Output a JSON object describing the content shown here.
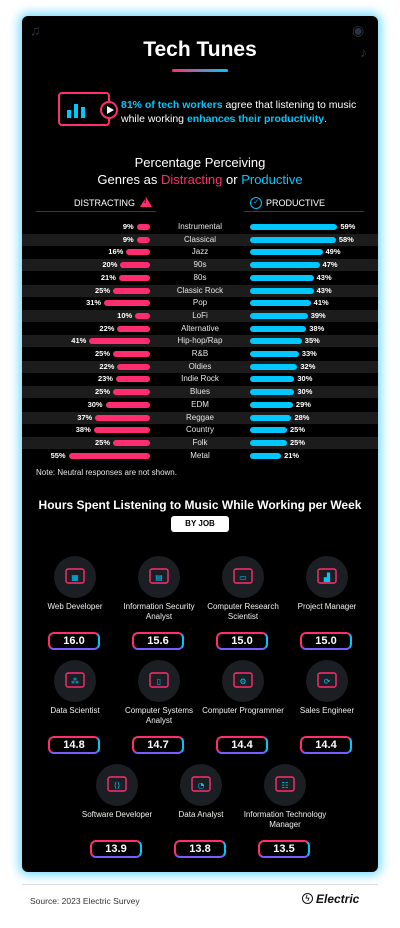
{
  "header": {
    "title": "Tech Tunes"
  },
  "stat": {
    "lead": "81% of tech workers",
    "middle": " agree that listening to music while working ",
    "highlight": "enhances their productivity",
    "end": "."
  },
  "genre_chart_title": {
    "line1": "Percentage Perceiving",
    "prefix": "Genres as ",
    "distracting": "Distracting",
    "or": " or ",
    "productive": "Productive"
  },
  "legend": {
    "distracting": "DISTRACTING",
    "productive": "PRODUCTIVE"
  },
  "note": "Note: Neutral responses are not shown.",
  "hours_section": {
    "title": "Hours Spent Listening to Music While Working per Week",
    "badge": "BY JOB"
  },
  "footer": {
    "source": "Source: 2023 Electric Survey",
    "brand": "Electric"
  },
  "colors": {
    "distracting": "#ff2d6f",
    "productive": "#00c8ff",
    "background": "#000000"
  },
  "chart_data": [
    {
      "type": "bar",
      "orientation": "horizontal-diverging",
      "title": "Percentage Perceiving Genres as Distracting or Productive",
      "categories": [
        "Instrumental",
        "Classical",
        "Jazz",
        "90s",
        "80s",
        "Classic Rock",
        "Pop",
        "LoFi",
        "Alternative",
        "Hip-hop/Rap",
        "R&B",
        "Oldies",
        "Indie Rock",
        "Blues",
        "EDM",
        "Reggae",
        "Country",
        "Folk",
        "Metal"
      ],
      "series": [
        {
          "name": "DISTRACTING",
          "values": [
            9,
            9,
            16,
            20,
            21,
            25,
            31,
            10,
            22,
            41,
            25,
            22,
            23,
            25,
            30,
            37,
            38,
            25,
            55
          ]
        },
        {
          "name": "PRODUCTIVE",
          "values": [
            59,
            58,
            49,
            47,
            43,
            43,
            41,
            39,
            38,
            35,
            33,
            32,
            30,
            30,
            29,
            28,
            25,
            25,
            21
          ]
        }
      ],
      "unit": "%",
      "legend": "top"
    },
    {
      "type": "table",
      "title": "Hours Spent Listening to Music While Working per Week",
      "subtitle": "BY JOB",
      "rows": [
        {
          "job": "Web Developer",
          "hours": "16.0",
          "icon": "web-layout-icon"
        },
        {
          "job": "Information Security Analyst",
          "hours": "15.6",
          "icon": "binary-lock-icon"
        },
        {
          "job": "Computer Research Scientist",
          "hours": "15.0",
          "icon": "monitor-search-icon"
        },
        {
          "job": "Project Manager",
          "hours": "15.0",
          "icon": "hand-chart-icon"
        },
        {
          "job": "Data Scientist",
          "hours": "14.8",
          "icon": "network-nodes-icon"
        },
        {
          "job": "Computer Systems Analyst",
          "hours": "14.7",
          "icon": "document-magnifier-icon"
        },
        {
          "job": "Computer Programmer",
          "hours": "14.4",
          "icon": "window-gear-icon"
        },
        {
          "job": "Sales Engineer",
          "hours": "14.4",
          "icon": "cycle-gear-icon"
        },
        {
          "job": "Software Developer",
          "hours": "13.9",
          "icon": "code-window-icon"
        },
        {
          "job": "Data Analyst",
          "hours": "13.8",
          "icon": "pie-hand-icon"
        },
        {
          "job": "Information Technology Manager",
          "hours": "13.5",
          "icon": "org-chart-person-icon"
        }
      ]
    }
  ]
}
